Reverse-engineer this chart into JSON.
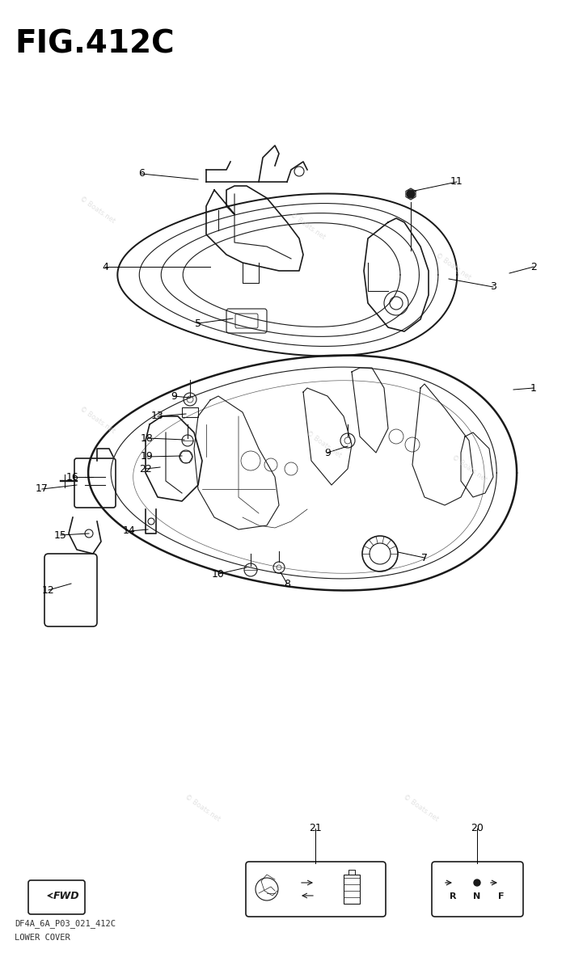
{
  "title": "FIG.412C",
  "subtitle_line1": "DF4A_6A_P03_021_412C",
  "subtitle_line2": "LOWER COVER",
  "bg_color": "#ffffff",
  "line_color": "#1a1a1a",
  "label_color": "#000000",
  "fig_width": 7.0,
  "fig_height": 12.0
}
